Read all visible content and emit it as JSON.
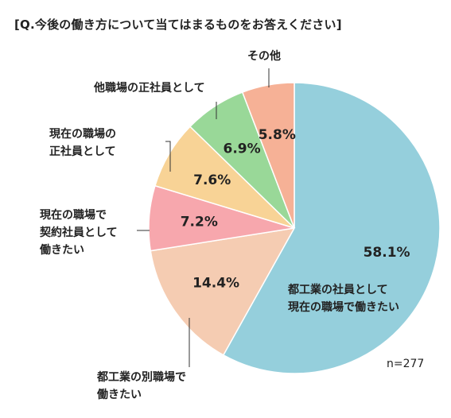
{
  "chart_data": {
    "type": "pie",
    "title": "[Q.今後の働き方について当てはまるものをお答えください]",
    "note": "n=277",
    "unit": "%",
    "slices": [
      {
        "label": "都工業の社員として\n現在の職場で働きたい",
        "value": 58.1,
        "value_label": "58.1%",
        "color": "#95cfdc"
      },
      {
        "label": "都工業の別職場で\n働きたい",
        "value": 14.4,
        "value_label": "14.4%",
        "color": "#f5ccb2"
      },
      {
        "label": "現在の職場で\n契約社員として\n働きたい",
        "value": 7.2,
        "value_label": "7.2%",
        "color": "#f7a7ad"
      },
      {
        "label": "現在の職場の\n正社員として",
        "value": 7.6,
        "value_label": "7.6%",
        "color": "#f8d396"
      },
      {
        "label": "他職場の正社員として",
        "value": 6.9,
        "value_label": "6.9%",
        "color": "#99d898"
      },
      {
        "label": "その他",
        "value": 5.8,
        "value_label": "5.8%",
        "color": "#f6b196"
      }
    ]
  }
}
